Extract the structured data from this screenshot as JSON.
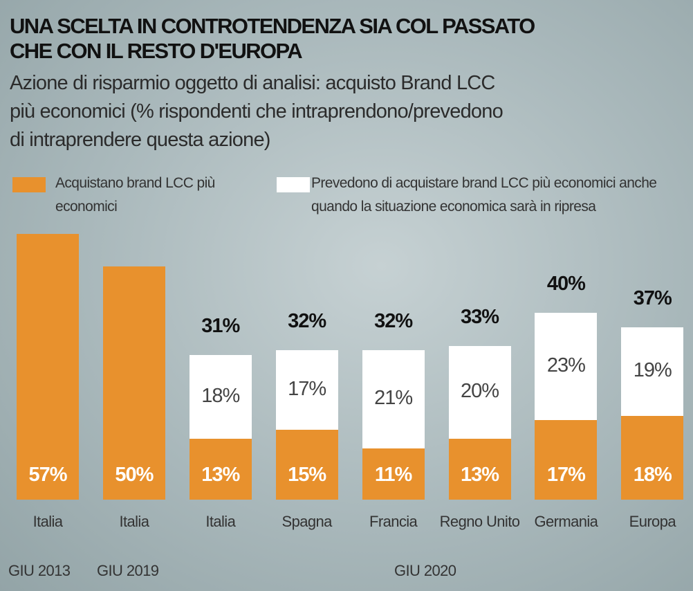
{
  "chart_data": {
    "type": "stacked-bar",
    "title": [
      "UNA SCELTA IN CONTROTENDENZA SIA COL PASSATO",
      "CHE CON IL RESTO D'EUROPA"
    ],
    "subtitle": [
      "Azione di risparmio oggetto di analisi: acquisto Brand LCC",
      "più economici (% rispondenti che intraprendono/prevedono",
      "di intraprendere questa azione)"
    ],
    "categories": [
      "Italia",
      "Italia",
      "Italia",
      "Spagna",
      "Francia",
      "Regno Unito",
      "Germania",
      "Europa"
    ],
    "series": [
      {
        "name": "Acquistano brand LCC più economici",
        "color": "#e8912d",
        "values": [
          57,
          50,
          13,
          15,
          11,
          13,
          17,
          18
        ],
        "value_labels": [
          "57%",
          "50%",
          "13%",
          "15%",
          "11%",
          "13%",
          "17%",
          "18%"
        ]
      },
      {
        "name": "Prevedono di acquistare brand LCC più economici anche quando la situazione economica sarà in ripresa",
        "color": "#ffffff",
        "values": [
          null,
          null,
          18,
          17,
          21,
          20,
          23,
          19
        ],
        "value_labels": [
          null,
          null,
          "18%",
          "17%",
          "21%",
          "20%",
          "23%",
          "19%"
        ]
      }
    ],
    "totals": [
      null,
      null,
      31,
      32,
      32,
      33,
      40,
      37
    ],
    "total_labels": [
      null,
      null,
      "31%",
      "32%",
      "32%",
      "33%",
      "40%",
      "37%"
    ],
    "groups": [
      "GIU 2013",
      "GIU 2019",
      "GIU 2020"
    ]
  }
}
